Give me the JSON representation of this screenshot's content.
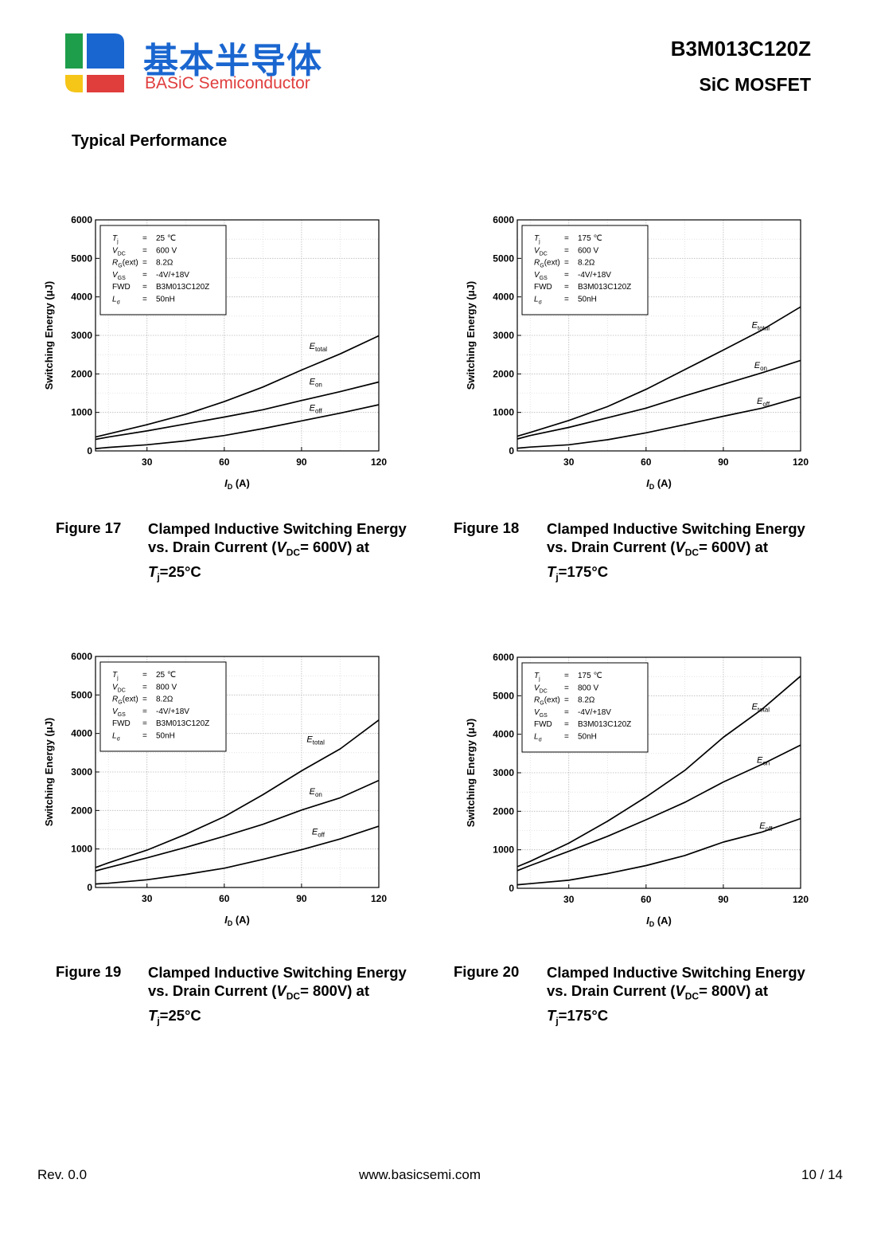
{
  "header": {
    "logo_cn": "基本半导体",
    "logo_en": "BASiC Semiconductor",
    "part_number": "B3M013C120Z",
    "device_type": "SiC MOSFET",
    "logo_colors": {
      "green": "#1e9e4a",
      "blue": "#1a66d0",
      "yellow": "#f5c518",
      "red": "#e03d3d"
    }
  },
  "section_title": "Typical Performance",
  "figures": [
    {
      "number": "Figure 17",
      "caption_line1": "Clamped Inductive Switching Energy",
      "caption_line2_pre": "vs. Drain Current (",
      "caption_v": "V",
      "caption_dc": "DC",
      "caption_line2_post": "= 600V) at",
      "caption_t": "T",
      "caption_j": "j",
      "caption_temp": "=25°C"
    },
    {
      "number": "Figure 18",
      "caption_line1": "Clamped Inductive Switching Energy",
      "caption_line2_pre": "vs. Drain Current (",
      "caption_v": "V",
      "caption_dc": "DC",
      "caption_line2_post": "= 600V) at",
      "caption_t": "T",
      "caption_j": "j",
      "caption_temp": "=175°C"
    },
    {
      "number": "Figure 19",
      "caption_line1": "Clamped Inductive Switching Energy",
      "caption_line2_pre": "vs. Drain Current (",
      "caption_v": "V",
      "caption_dc": "DC",
      "caption_line2_post": "= 800V) at",
      "caption_t": "T",
      "caption_j": "j",
      "caption_temp": "=25°C"
    },
    {
      "number": "Figure 20",
      "caption_line1": "Clamped Inductive Switching Energy",
      "caption_line2_pre": "vs. Drain Current (",
      "caption_v": "V",
      "caption_dc": "DC",
      "caption_line2_post": "= 800V) at",
      "caption_t": "T",
      "caption_j": "j",
      "caption_temp": "=175°C"
    }
  ],
  "chart_data": [
    {
      "type": "line",
      "ylabel": "Switching Energy (μJ)",
      "xlabel_main": "I",
      "xlabel_sub": "D",
      "xlabel_unit": " (A)",
      "xlim": [
        10,
        120
      ],
      "ylim": [
        0,
        6000
      ],
      "xticks": [
        30,
        60,
        90,
        120
      ],
      "yticks": [
        0,
        1000,
        2000,
        3000,
        4000,
        5000,
        6000
      ],
      "grid": true,
      "conditions": [
        {
          "sym": "T",
          "sub": "j",
          "post": "",
          "val": "25 ℃"
        },
        {
          "sym": "V",
          "sub": "DC",
          "post": "",
          "val": "600 V"
        },
        {
          "sym": "R",
          "sub": "G",
          "post": "(ext)",
          "val": "8.2Ω"
        },
        {
          "sym": "V",
          "sub": "GS",
          "post": "",
          "val": "-4V/+18V"
        },
        {
          "sym": "FWD",
          "sub": "",
          "post": "",
          "val": "B3M013C120Z"
        },
        {
          "sym": "L",
          "sub": "σ",
          "post": "",
          "val": "50nH"
        }
      ],
      "x": [
        10,
        15,
        30,
        45,
        60,
        75,
        90,
        105,
        120
      ],
      "series": [
        {
          "name_main": "E",
          "name_sub": "total",
          "values": [
            360,
            440,
            680,
            950,
            1280,
            1660,
            2100,
            2520,
            2990
          ],
          "label_x": 93,
          "label_y": 2650
        },
        {
          "name_main": "E",
          "name_sub": "on",
          "values": [
            300,
            360,
            520,
            700,
            880,
            1070,
            1310,
            1540,
            1790
          ],
          "label_x": 93,
          "label_y": 1730
        },
        {
          "name_main": "E",
          "name_sub": "off",
          "values": [
            60,
            90,
            160,
            260,
            400,
            580,
            780,
            980,
            1200
          ],
          "label_x": 93,
          "label_y": 1040
        }
      ]
    },
    {
      "type": "line",
      "ylabel": "Switching Energy (μJ)",
      "xlabel_main": "I",
      "xlabel_sub": "D",
      "xlabel_unit": " (A)",
      "xlim": [
        10,
        120
      ],
      "ylim": [
        0,
        6000
      ],
      "xticks": [
        30,
        60,
        90,
        120
      ],
      "yticks": [
        0,
        1000,
        2000,
        3000,
        4000,
        5000,
        6000
      ],
      "grid": true,
      "conditions": [
        {
          "sym": "T",
          "sub": "j",
          "post": "",
          "val": "175 ℃"
        },
        {
          "sym": "V",
          "sub": "DC",
          "post": "",
          "val": "600 V"
        },
        {
          "sym": "R",
          "sub": "G",
          "post": "(ext)",
          "val": "8.2Ω"
        },
        {
          "sym": "V",
          "sub": "GS",
          "post": "",
          "val": "-4V/+18V"
        },
        {
          "sym": "FWD",
          "sub": "",
          "post": "",
          "val": "B3M013C120Z"
        },
        {
          "sym": "L",
          "sub": "σ",
          "post": "",
          "val": "50nH"
        }
      ],
      "x": [
        10,
        15,
        30,
        45,
        60,
        75,
        90,
        105,
        120
      ],
      "series": [
        {
          "name_main": "E",
          "name_sub": "total",
          "values": [
            380,
            480,
            790,
            1150,
            1600,
            2110,
            2620,
            3140,
            3740
          ],
          "label_x": 101,
          "label_y": 3200
        },
        {
          "name_main": "E",
          "name_sub": "on",
          "values": [
            310,
            400,
            610,
            860,
            1110,
            1430,
            1730,
            2030,
            2350
          ],
          "label_x": 102,
          "label_y": 2150
        },
        {
          "name_main": "E",
          "name_sub": "off",
          "values": [
            70,
            100,
            160,
            290,
            470,
            680,
            900,
            1110,
            1400
          ],
          "label_x": 103,
          "label_y": 1220
        }
      ]
    },
    {
      "type": "line",
      "ylabel": "Switching Energy (μJ)",
      "xlabel_main": "I",
      "xlabel_sub": "D",
      "xlabel_unit": " (A)",
      "xlim": [
        10,
        120
      ],
      "ylim": [
        0,
        6000
      ],
      "xticks": [
        30,
        60,
        90,
        120
      ],
      "yticks": [
        0,
        1000,
        2000,
        3000,
        4000,
        5000,
        6000
      ],
      "grid": true,
      "conditions": [
        {
          "sym": "T",
          "sub": "j",
          "post": "",
          "val": "25 ℃"
        },
        {
          "sym": "V",
          "sub": "DC",
          "post": "",
          "val": "800 V"
        },
        {
          "sym": "R",
          "sub": "G",
          "post": "(ext)",
          "val": "8.2Ω"
        },
        {
          "sym": "V",
          "sub": "GS",
          "post": "",
          "val": "-4V/+18V"
        },
        {
          "sym": "FWD",
          "sub": "",
          "post": "",
          "val": "B3M013C120Z"
        },
        {
          "sym": "L",
          "sub": "σ",
          "post": "",
          "val": "50nH"
        }
      ],
      "x": [
        10,
        15,
        30,
        45,
        60,
        75,
        90,
        105,
        120
      ],
      "series": [
        {
          "name_main": "E",
          "name_sub": "total",
          "values": [
            520,
            640,
            970,
            1380,
            1840,
            2410,
            3030,
            3600,
            4350
          ],
          "label_x": 92,
          "label_y": 3780
        },
        {
          "name_main": "E",
          "name_sub": "on",
          "values": [
            430,
            520,
            770,
            1040,
            1330,
            1640,
            2010,
            2330,
            2780
          ],
          "label_x": 93,
          "label_y": 2420
        },
        {
          "name_main": "E",
          "name_sub": "off",
          "values": [
            90,
            110,
            200,
            340,
            500,
            730,
            980,
            1260,
            1590
          ],
          "label_x": 94,
          "label_y": 1380
        }
      ]
    },
    {
      "type": "line",
      "ylabel": "Switching Energy (μJ)",
      "xlabel_main": "I",
      "xlabel_sub": "D",
      "xlabel_unit": " (A)",
      "xlim": [
        10,
        120
      ],
      "ylim": [
        0,
        6000
      ],
      "xticks": [
        30,
        60,
        90,
        120
      ],
      "yticks": [
        0,
        1000,
        2000,
        3000,
        4000,
        5000,
        6000
      ],
      "grid": true,
      "conditions": [
        {
          "sym": "T",
          "sub": "j",
          "post": "",
          "val": "175 ℃"
        },
        {
          "sym": "V",
          "sub": "DC",
          "post": "",
          "val": "800 V"
        },
        {
          "sym": "R",
          "sub": "G",
          "post": "(ext)",
          "val": "8.2Ω"
        },
        {
          "sym": "V",
          "sub": "GS",
          "post": "",
          "val": "-4V/+18V"
        },
        {
          "sym": "FWD",
          "sub": "",
          "post": "",
          "val": "B3M013C120Z"
        },
        {
          "sym": "L",
          "sub": "σ",
          "post": "",
          "val": "50nH"
        }
      ],
      "x": [
        10,
        15,
        30,
        45,
        60,
        75,
        90,
        105,
        120
      ],
      "series": [
        {
          "name_main": "E",
          "name_sub": "total",
          "values": [
            560,
            700,
            1170,
            1740,
            2370,
            3060,
            3920,
            4650,
            5510
          ],
          "label_x": 101,
          "label_y": 4650
        },
        {
          "name_main": "E",
          "name_sub": "on",
          "values": [
            460,
            590,
            960,
            1350,
            1780,
            2230,
            2760,
            3220,
            3720
          ],
          "label_x": 103,
          "label_y": 3260
        },
        {
          "name_main": "E",
          "name_sub": "off",
          "values": [
            90,
            120,
            210,
            380,
            590,
            850,
            1200,
            1460,
            1810
          ],
          "label_x": 104,
          "label_y": 1550
        }
      ]
    }
  ],
  "footer": {
    "revision": "Rev. 0.0",
    "website": "www.basicsemi.com",
    "page": "10 / 14"
  }
}
